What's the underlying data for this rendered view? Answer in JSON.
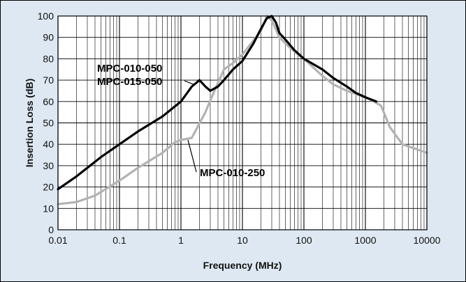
{
  "colors": {
    "background": "#dde8f2",
    "plot_background": "#ffffff",
    "series_dark": "#000000",
    "series_light": "#b3b3b3"
  },
  "chart_data": {
    "type": "line",
    "title": "",
    "xlabel": "Frequency (MHz)",
    "ylabel": "Insertion Loss (dB)",
    "xscale": "log",
    "xlim": [
      0.01,
      10000
    ],
    "ylim": [
      0,
      100
    ],
    "x_ticks": [
      "0.01",
      "0.1",
      "1",
      "10",
      "100",
      "1000",
      "10000"
    ],
    "y_ticks": [
      "0",
      "10",
      "20",
      "30",
      "40",
      "50",
      "60",
      "70",
      "80",
      "90",
      "100"
    ],
    "grid": true,
    "legend": "none",
    "series": [
      {
        "name": "MPC-010-050 MPC-015-050",
        "color": "#000000",
        "points": [
          [
            0.01,
            19
          ],
          [
            0.02,
            25
          ],
          [
            0.05,
            34
          ],
          [
            0.1,
            40
          ],
          [
            0.2,
            46
          ],
          [
            0.5,
            53
          ],
          [
            1,
            60
          ],
          [
            1.5,
            67
          ],
          [
            2,
            70
          ],
          [
            2.5,
            67
          ],
          [
            3,
            65
          ],
          [
            4,
            67
          ],
          [
            5,
            70
          ],
          [
            7,
            75
          ],
          [
            10,
            79
          ],
          [
            15,
            87
          ],
          [
            20,
            94
          ],
          [
            25,
            99
          ],
          [
            30,
            100
          ],
          [
            35,
            97
          ],
          [
            40,
            92
          ],
          [
            50,
            89
          ],
          [
            70,
            84
          ],
          [
            100,
            80
          ],
          [
            200,
            75
          ],
          [
            300,
            71
          ],
          [
            500,
            67
          ],
          [
            700,
            64
          ],
          [
            1000,
            62
          ],
          [
            1500,
            60
          ]
        ]
      },
      {
        "name": "MPC-010-250",
        "color": "#b3b3b3",
        "points": [
          [
            0.01,
            12
          ],
          [
            0.02,
            13
          ],
          [
            0.04,
            16
          ],
          [
            0.1,
            23
          ],
          [
            0.2,
            29
          ],
          [
            0.5,
            36
          ],
          [
            0.8,
            41
          ],
          [
            1,
            42
          ],
          [
            1.5,
            43
          ],
          [
            2.5,
            55
          ],
          [
            3.5,
            65
          ],
          [
            5,
            75
          ],
          [
            7,
            78
          ],
          [
            10,
            82
          ],
          [
            20,
            93
          ],
          [
            25,
            100
          ],
          [
            30,
            98
          ],
          [
            40,
            90
          ],
          [
            60,
            85
          ],
          [
            100,
            80
          ],
          [
            200,
            72
          ],
          [
            300,
            68
          ],
          [
            500,
            65
          ],
          [
            800,
            63
          ],
          [
            1200,
            61
          ],
          [
            1800,
            58
          ],
          [
            2500,
            48
          ],
          [
            4000,
            40
          ],
          [
            10000,
            36
          ]
        ]
      }
    ],
    "annotations": [
      {
        "lines": [
          "MPC-010-050",
          "MPC-015-050"
        ],
        "series": 0,
        "point_x": 1.6,
        "point_y": 68
      },
      {
        "lines": [
          "MPC-010-250"
        ],
        "series": 1,
        "point_x": 1.3,
        "point_y": 42
      }
    ]
  }
}
